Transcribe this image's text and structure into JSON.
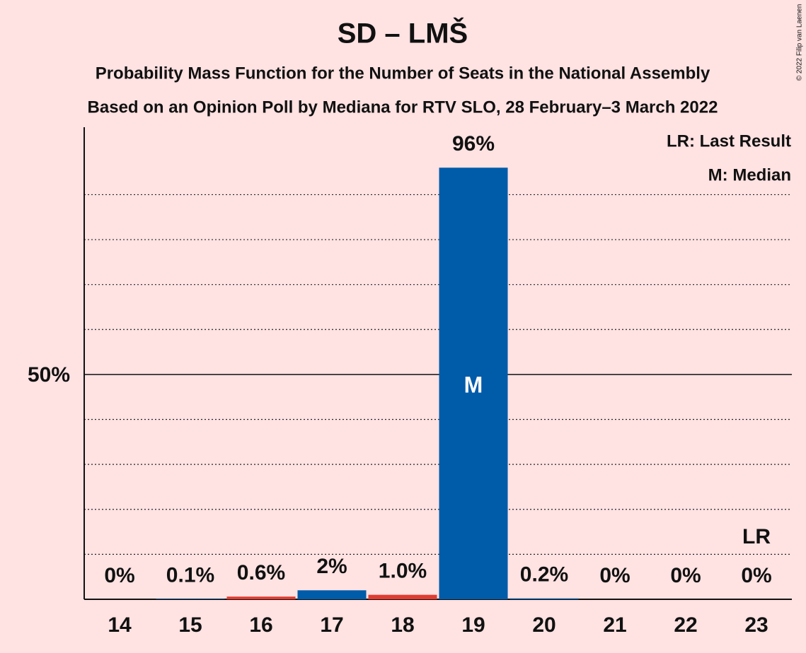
{
  "chart_data": {
    "type": "bar",
    "title": "SD – LMŠ",
    "subtitle": "Probability Mass Function for the Number of Seats in the National Assembly",
    "subtitle2": "Based on an Opinion Poll by Mediana for RTV SLO, 28 February–3 March 2022",
    "copyright": "© 2022 Filip van Laenen",
    "categories": [
      "14",
      "15",
      "16",
      "17",
      "18",
      "19",
      "20",
      "21",
      "22",
      "23"
    ],
    "values": [
      0,
      0.1,
      0.6,
      2,
      1.0,
      96,
      0.2,
      0,
      0,
      0
    ],
    "value_labels": [
      "0%",
      "0.1%",
      "0.6%",
      "2%",
      "1.0%",
      "96%",
      "0.2%",
      "0%",
      "0%",
      "0%"
    ],
    "colors": [
      "#005ba9",
      "#005ba9",
      "#e03c31",
      "#005ba9",
      "#e03c31",
      "#005ba9",
      "#005ba9",
      "#005ba9",
      "#005ba9",
      "#005ba9"
    ],
    "ylim": [
      0,
      105
    ],
    "yticks": [
      {
        "value": 50,
        "label": "50%"
      }
    ],
    "minor_yticks": [
      10,
      20,
      30,
      40,
      60,
      70,
      80,
      90
    ],
    "median": {
      "index": 5,
      "label": "M"
    },
    "last_result": {
      "index": 9,
      "label": "LR"
    },
    "legend": [
      "LR: Last Result",
      "M: Median"
    ]
  }
}
